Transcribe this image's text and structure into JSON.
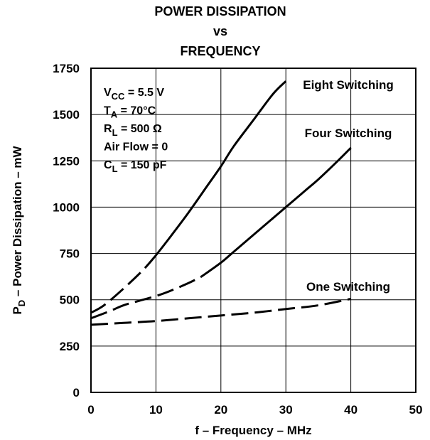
{
  "chart_data": {
    "type": "line",
    "title": [
      "POWER DISSIPATION",
      "vs",
      "FREQUENCY"
    ],
    "xlabel": "f – Frequency – MHz",
    "ylabel": {
      "prefix": "P",
      "sub": "D",
      "rest": " – Power Dissipation – mW"
    },
    "xlim": [
      0,
      50
    ],
    "ylim": [
      0,
      1750
    ],
    "xticks": [
      "0",
      "10",
      "20",
      "30",
      "40",
      "50"
    ],
    "yticks": [
      "0",
      "250",
      "500",
      "750",
      "1000",
      "1250",
      "1500",
      "1750"
    ],
    "grid": true,
    "conditions": [
      {
        "main": "V",
        "sub": "CC",
        "rest": " = 5.5 V"
      },
      {
        "main": "T",
        "sub": "A",
        "rest": " = 70°C"
      },
      {
        "main": "R",
        "sub": "L",
        "rest": " = 500 Ω"
      },
      {
        "main": "Air Flow = 0",
        "sub": "",
        "rest": ""
      },
      {
        "main": "C",
        "sub": "L",
        "rest": " = 150 pF"
      }
    ],
    "series": [
      {
        "name": "Eight Switching",
        "x": [
          0,
          2,
          5,
          8,
          10,
          12,
          15,
          18,
          20,
          22,
          25,
          28,
          30
        ],
        "y": [
          430,
          470,
          560,
          660,
          740,
          830,
          970,
          1120,
          1220,
          1330,
          1470,
          1610,
          1680
        ],
        "dashed_until": 10
      },
      {
        "name": "Four Switching",
        "x": [
          0,
          3,
          5,
          8,
          10,
          12,
          15,
          17,
          20,
          22,
          25,
          28,
          30,
          33,
          35,
          38,
          40
        ],
        "y": [
          400,
          440,
          470,
          500,
          520,
          545,
          590,
          625,
          700,
          760,
          850,
          940,
          1000,
          1090,
          1150,
          1250,
          1320
        ],
        "dashed_until": 17
      },
      {
        "name": "One Switching",
        "x": [
          0,
          5,
          10,
          15,
          20,
          25,
          30,
          35,
          40
        ],
        "y": [
          365,
          375,
          385,
          400,
          415,
          430,
          450,
          470,
          505
        ],
        "dashed_until": 40
      }
    ]
  }
}
